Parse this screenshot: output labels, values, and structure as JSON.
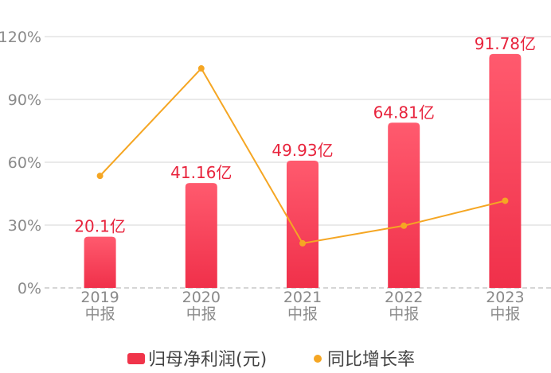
{
  "chart_data": {
    "type": "bar",
    "categories": [
      "2019\n中报",
      "2020\n中报",
      "2021\n中报",
      "2022\n中报",
      "2023\n中报"
    ],
    "series": [
      {
        "name": "归母净利润(元)",
        "type": "bar",
        "values": [
          20.1,
          41.16,
          49.93,
          64.81,
          91.78
        ],
        "labels": [
          "20.1亿",
          "41.16亿",
          "49.93亿",
          "64.81亿",
          "91.78亿"
        ],
        "color": "#f0344a"
      },
      {
        "name": "同比增长率",
        "type": "line",
        "values": [
          53.5,
          104.8,
          21.3,
          29.7,
          41.6
        ],
        "color": "#f5a623"
      }
    ],
    "y_axis": {
      "min": 0,
      "max": 120,
      "ticks": [
        "0%",
        "30%",
        "60%",
        "90%",
        "120%"
      ]
    },
    "grid": true,
    "legend_position": "bottom"
  }
}
